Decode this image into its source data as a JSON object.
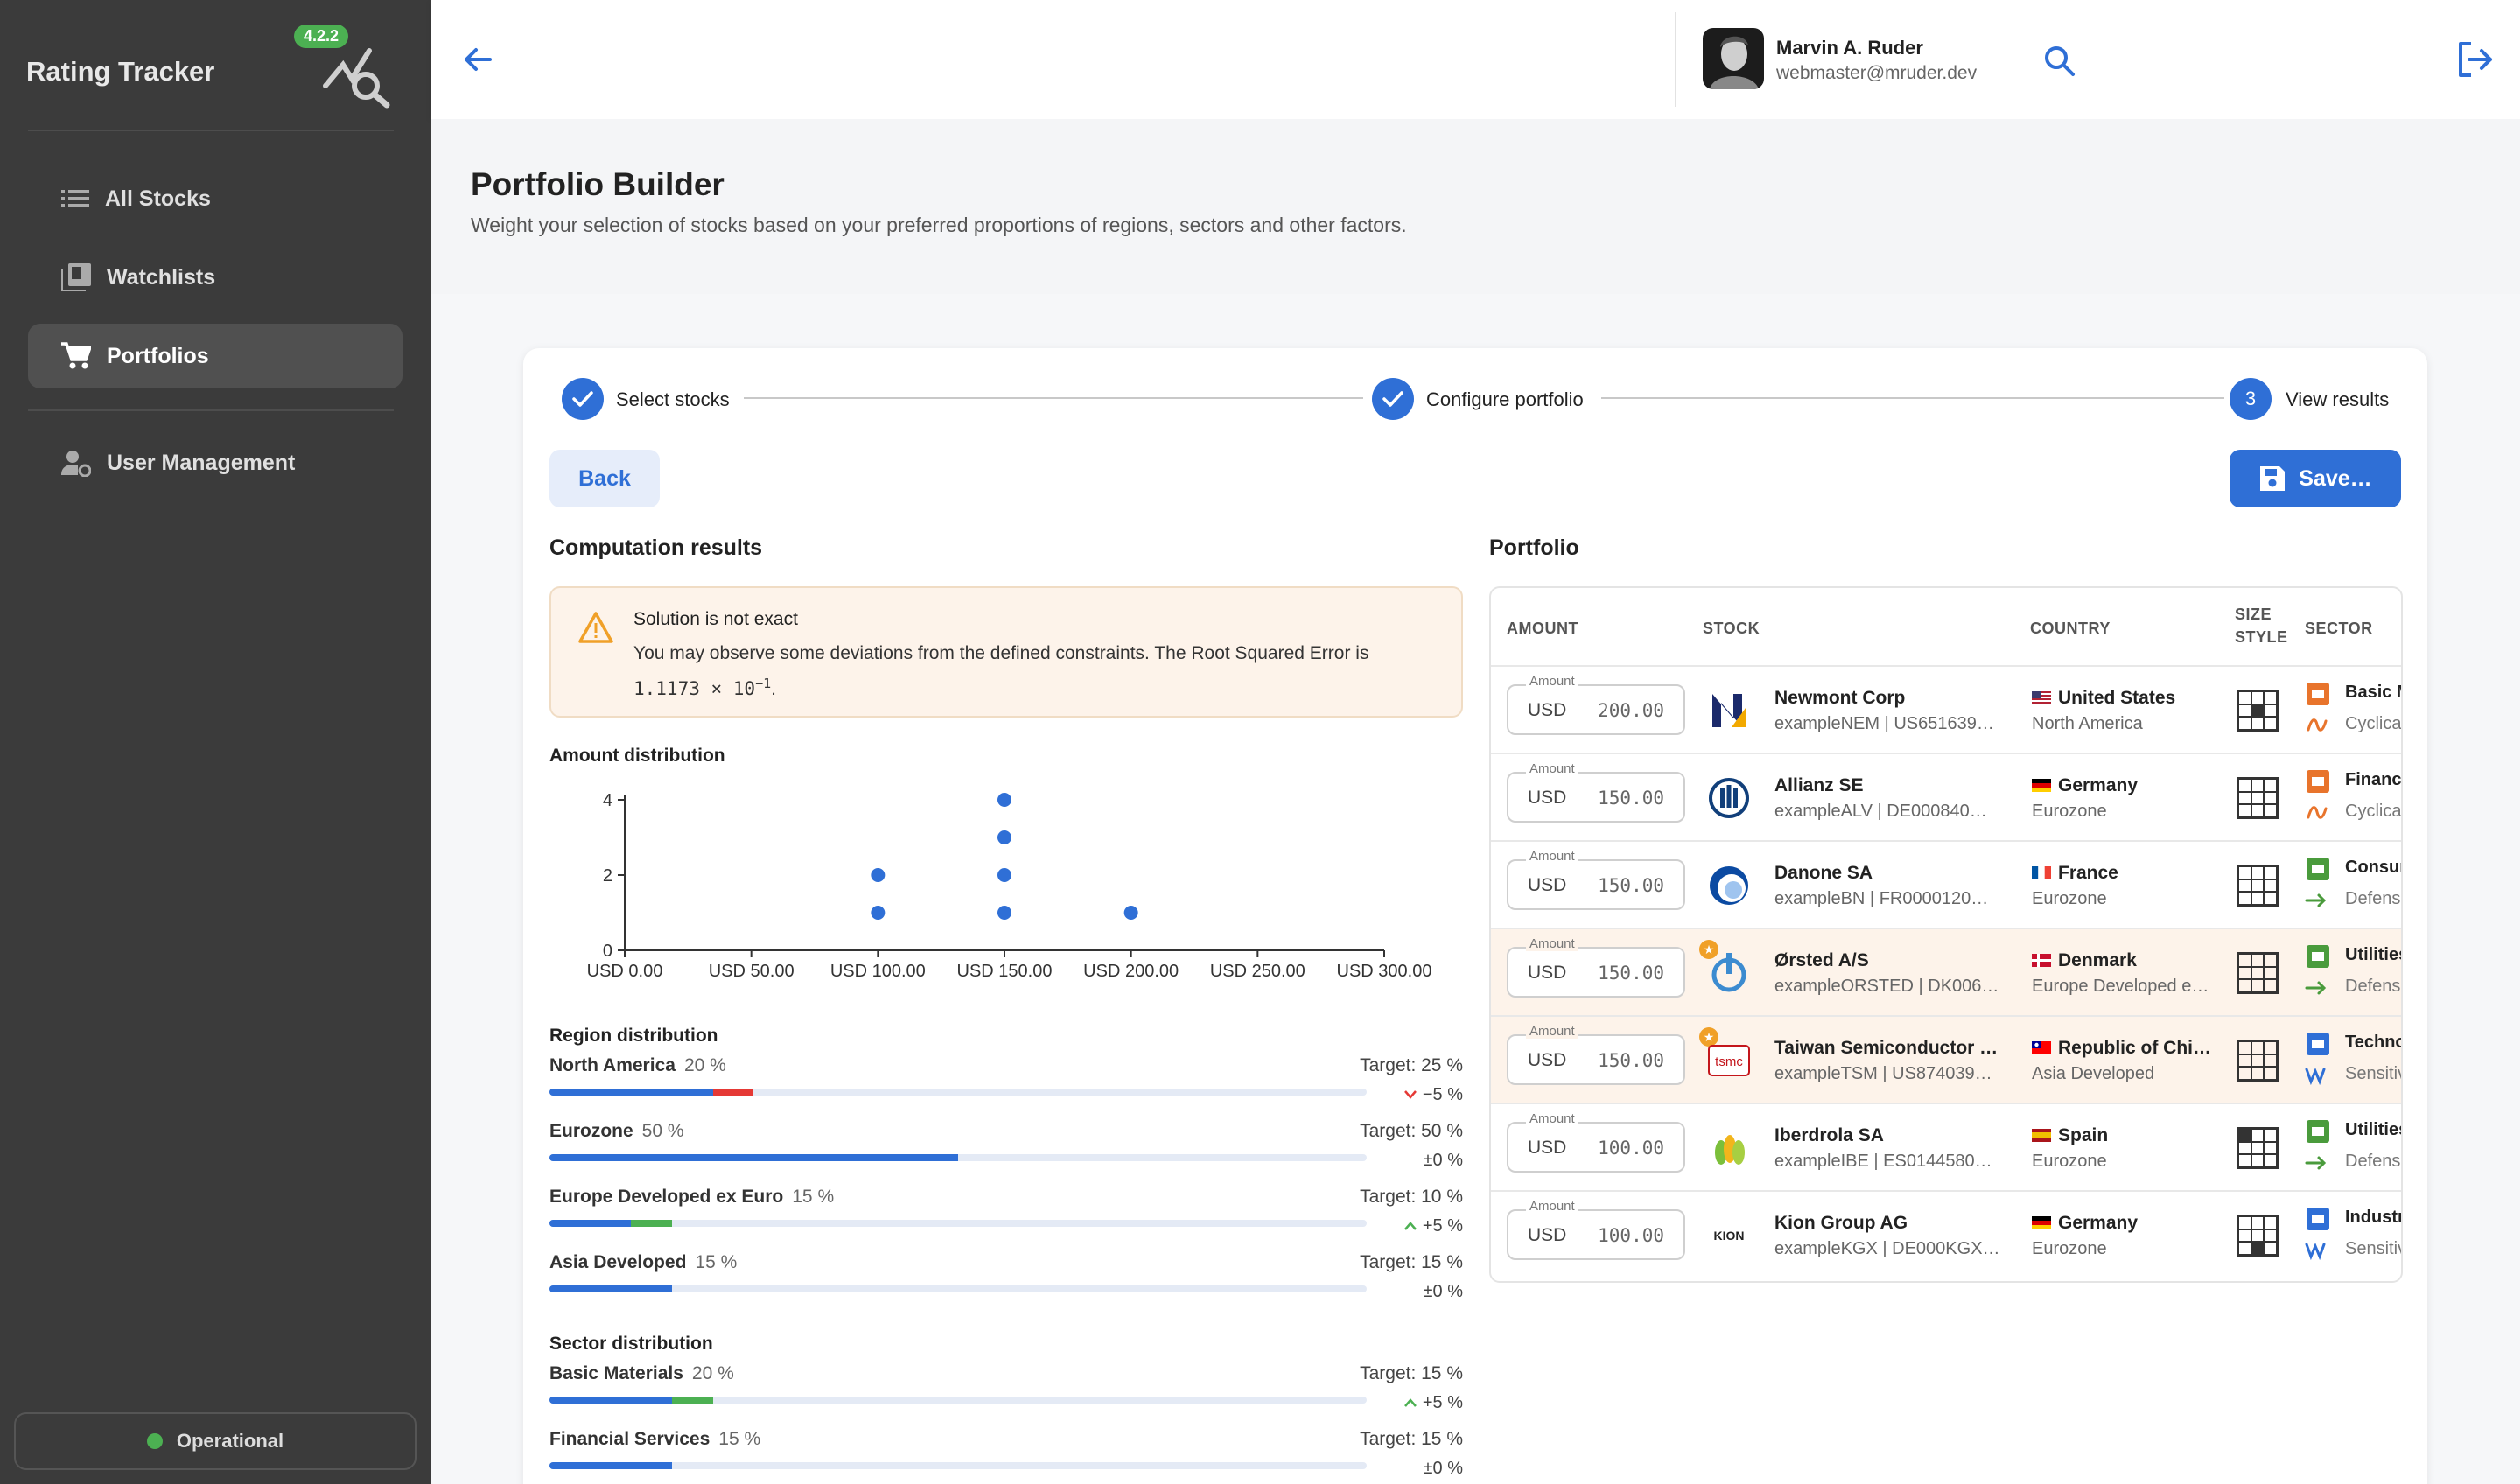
{
  "sidebar": {
    "title": "Rating Tracker",
    "version": "4.2.2",
    "items": [
      {
        "label": "All Stocks"
      },
      {
        "label": "Watchlists"
      },
      {
        "label": "Portfolios"
      },
      {
        "label": "User Management"
      }
    ],
    "status": "Operational"
  },
  "user": {
    "name": "Marvin A. Ruder",
    "email": "webmaster@mruder.dev"
  },
  "page": {
    "title": "Portfolio Builder",
    "subtitle": "Weight your selection of stocks based on your preferred proportions of regions, sectors and other factors."
  },
  "stepper": {
    "steps": [
      {
        "label": "Select stocks",
        "state": "done"
      },
      {
        "label": "Configure portfolio",
        "state": "done"
      },
      {
        "label": "View results",
        "number": "3",
        "state": "active"
      }
    ]
  },
  "actions": {
    "back": "Back",
    "save": "Save…"
  },
  "results": {
    "title": "Computation results",
    "warning": {
      "title": "Solution is not exact",
      "text": "You may observe some deviations from the defined constraints. The Root Squared Error is",
      "value": "1.1173 × 10",
      "exponent": "−1",
      "end": "."
    },
    "amount_title": "Amount distribution",
    "region_title": "Region distribution",
    "sector_title": "Sector distribution",
    "regions": [
      {
        "name": "North America",
        "pct": "20 %",
        "target": "Target: 25 %",
        "delta": "−5 %",
        "actual": 20,
        "goal": 25
      },
      {
        "name": "Eurozone",
        "pct": "50 %",
        "target": "Target: 50 %",
        "delta": "±0 %",
        "actual": 50,
        "goal": 50
      },
      {
        "name": "Europe Developed ex Euro",
        "pct": "15 %",
        "target": "Target: 10 %",
        "delta": "+5 %",
        "actual": 15,
        "goal": 10
      },
      {
        "name": "Asia Developed",
        "pct": "15 %",
        "target": "Target: 15 %",
        "delta": "±0 %",
        "actual": 15,
        "goal": 15
      }
    ],
    "sectors": [
      {
        "name": "Basic Materials",
        "pct": "20 %",
        "target": "Target: 15 %",
        "delta": "+5 %",
        "actual": 20,
        "goal": 15
      },
      {
        "name": "Financial Services",
        "pct": "15 %",
        "target": "Target: 15 %",
        "delta": "±0 %",
        "actual": 15,
        "goal": 15
      }
    ]
  },
  "chart_data": {
    "type": "scatter",
    "title": "Amount distribution",
    "xlim": [
      0,
      300
    ],
    "ylim": [
      0,
      4
    ],
    "x_ticks": [
      "USD 0.00",
      "USD 50.00",
      "USD 100.00",
      "USD 150.00",
      "USD 200.00",
      "USD 250.00",
      "USD 300.00"
    ],
    "x_tick_values": [
      0,
      50,
      100,
      150,
      200,
      250,
      300
    ],
    "y_ticks": [
      "0",
      "2",
      "4"
    ],
    "y_tick_values": [
      0,
      2,
      4
    ],
    "points": [
      {
        "x": 100,
        "y": 1
      },
      {
        "x": 100,
        "y": 2
      },
      {
        "x": 150,
        "y": 1
      },
      {
        "x": 150,
        "y": 2
      },
      {
        "x": 150,
        "y": 3
      },
      {
        "x": 150,
        "y": 4
      },
      {
        "x": 200,
        "y": 1
      }
    ],
    "color": "#2f6fd6"
  },
  "portfolio": {
    "title": "Portfolio",
    "headers": {
      "amount": "AMOUNT",
      "stock": "STOCK",
      "country": "COUNTRY",
      "size": "SIZE",
      "style": "STYLE",
      "sector": "SECTOR"
    },
    "amount_label": "Amount",
    "rows": [
      {
        "currency": "USD",
        "amount": "200.00",
        "name": "Newmont Corp",
        "id": "exampleNEM | US651639…",
        "country": "United States",
        "region": "North America",
        "sector": "Basic M",
        "sector_type": "Cyclical",
        "logo": "NEM",
        "flag": "us",
        "highlight": false
      },
      {
        "currency": "USD",
        "amount": "150.00",
        "name": "Allianz SE",
        "id": "exampleALV | DE000840…",
        "country": "Germany",
        "region": "Eurozone",
        "sector": "Financi",
        "sector_type": "Cyclical",
        "logo": "ALV",
        "flag": "de",
        "highlight": false
      },
      {
        "currency": "USD",
        "amount": "150.00",
        "name": "Danone SA",
        "id": "exampleBN | FR0000120…",
        "country": "France",
        "region": "Eurozone",
        "sector": "Consum",
        "sector_type": "Defensive",
        "logo": "BN",
        "flag": "fr",
        "highlight": false
      },
      {
        "currency": "USD",
        "amount": "150.00",
        "name": "Ørsted A/S",
        "id": "exampleORSTED | DK006…",
        "country": "Denmark",
        "region": "Europe Developed e…",
        "sector": "Utilities",
        "sector_type": "Defensive",
        "logo": "ORSTED",
        "flag": "dk",
        "highlight": true
      },
      {
        "currency": "USD",
        "amount": "150.00",
        "name": "Taiwan Semiconductor …",
        "id": "exampleTSM | US874039…",
        "country": "Republic of Chi…",
        "region": "Asia Developed",
        "sector": "Techno",
        "sector_type": "Sensitive",
        "logo": "tsmc",
        "flag": "tw",
        "highlight": true
      },
      {
        "currency": "USD",
        "amount": "100.00",
        "name": "Iberdrola SA",
        "id": "exampleIBE | ES0144580…",
        "country": "Spain",
        "region": "Eurozone",
        "sector": "Utilities",
        "sector_type": "Defensive",
        "logo": "IBE",
        "flag": "es",
        "highlight": false
      },
      {
        "currency": "USD",
        "amount": "100.00",
        "name": "Kion Group AG",
        "id": "exampleKGX | DE000KGX…",
        "country": "Germany",
        "region": "Eurozone",
        "sector": "Industr",
        "sector_type": "Sensitive",
        "logo": "KION",
        "flag": "de",
        "highlight": false
      }
    ]
  },
  "colors": {
    "accent": "#2f6fd6",
    "sidebar": "#3b3b3b",
    "positive": "#4cb052",
    "negative": "#e53935",
    "warning": "#f0a028"
  }
}
